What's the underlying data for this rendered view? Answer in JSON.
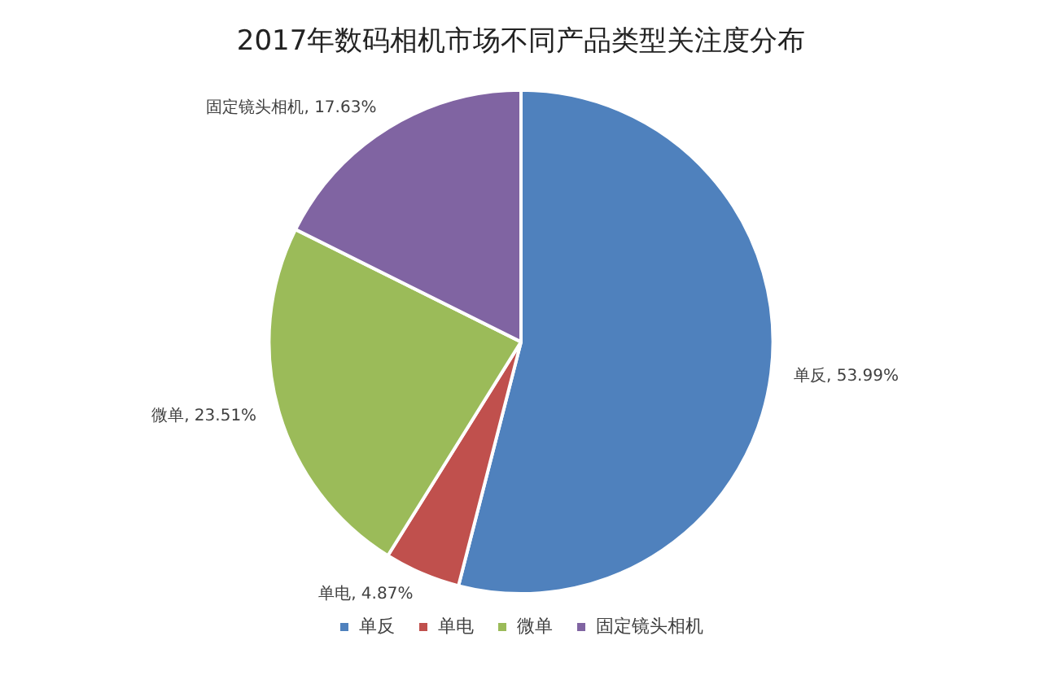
{
  "chart_data": {
    "type": "pie",
    "title": "2017年数码相机市场不同产品类型关注度分布",
    "categories": [
      "单反",
      "单电",
      "微单",
      "固定镜头相机"
    ],
    "values": [
      53.99,
      4.87,
      23.51,
      17.63
    ],
    "value_labels": [
      "单反, 53.99%",
      "单电, 4.87%",
      "微单, 23.51%",
      "固定镜头相机, 17.63%"
    ],
    "colors": [
      "#4f81bd",
      "#c0504d",
      "#9bbb59",
      "#8064a2"
    ],
    "legend": "bottom"
  }
}
